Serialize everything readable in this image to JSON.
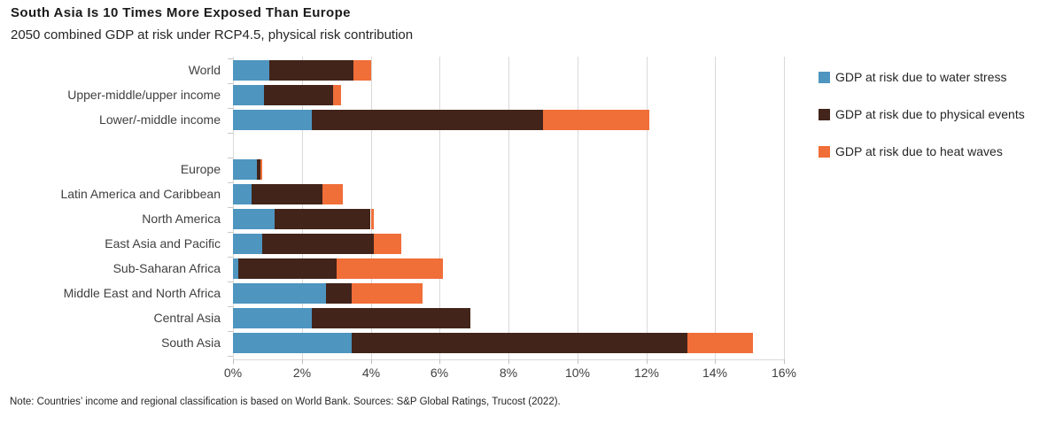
{
  "header": {
    "title": "South Asia Is 10 Times More Exposed Than Europe",
    "subtitle": "2050 combined GDP at risk under RCP4.5, physical risk contribution"
  },
  "footnote": "Note: Countries’ income and regional classification is based on World Bank. Sources: S&P Global Ratings, Trucost (2022).",
  "chart_data": {
    "type": "bar",
    "orientation": "horizontal-stacked",
    "title": "South Asia Is 10 Times More Exposed Than Europe",
    "subtitle": "2050 combined GDP at risk under RCP4.5, physical risk contribution",
    "xlim": [
      0,
      16
    ],
    "x_ticks": [
      "0%",
      "2%",
      "4%",
      "6%",
      "8%",
      "10%",
      "12%",
      "14%",
      "16%"
    ],
    "grid": true,
    "legend_position": "right",
    "categories": [
      "World",
      "Upper-middle/upper income",
      "Lower/-middle income",
      "Europe",
      "Latin America and Caribbean",
      "North America",
      "East Asia and Pacific",
      "Sub-Saharan Africa",
      "Middle East and North Africa",
      "Central Asia",
      "South Asia"
    ],
    "group_break_index": 3,
    "series": [
      {
        "name": "GDP at risk due to water stress",
        "color": "#4E95C0",
        "values": [
          1.05,
          0.9,
          2.3,
          0.7,
          0.55,
          1.2,
          0.85,
          0.15,
          2.7,
          2.3,
          3.45
        ]
      },
      {
        "name": "GDP at risk due to physical events",
        "color": "#42241A",
        "values": [
          2.45,
          2.0,
          6.7,
          0.1,
          2.05,
          2.8,
          3.25,
          2.85,
          0.75,
          4.6,
          9.75
        ]
      },
      {
        "name": "GDP at risk due to heat waves",
        "color": "#F06E38",
        "values": [
          0.5,
          0.25,
          3.1,
          0.05,
          0.6,
          0.1,
          0.8,
          3.1,
          2.05,
          0,
          1.9
        ]
      }
    ]
  },
  "colors": {
    "gridline": "#D9D9D9",
    "axis_text": "#404040",
    "title_text": "#1A1A1A"
  }
}
